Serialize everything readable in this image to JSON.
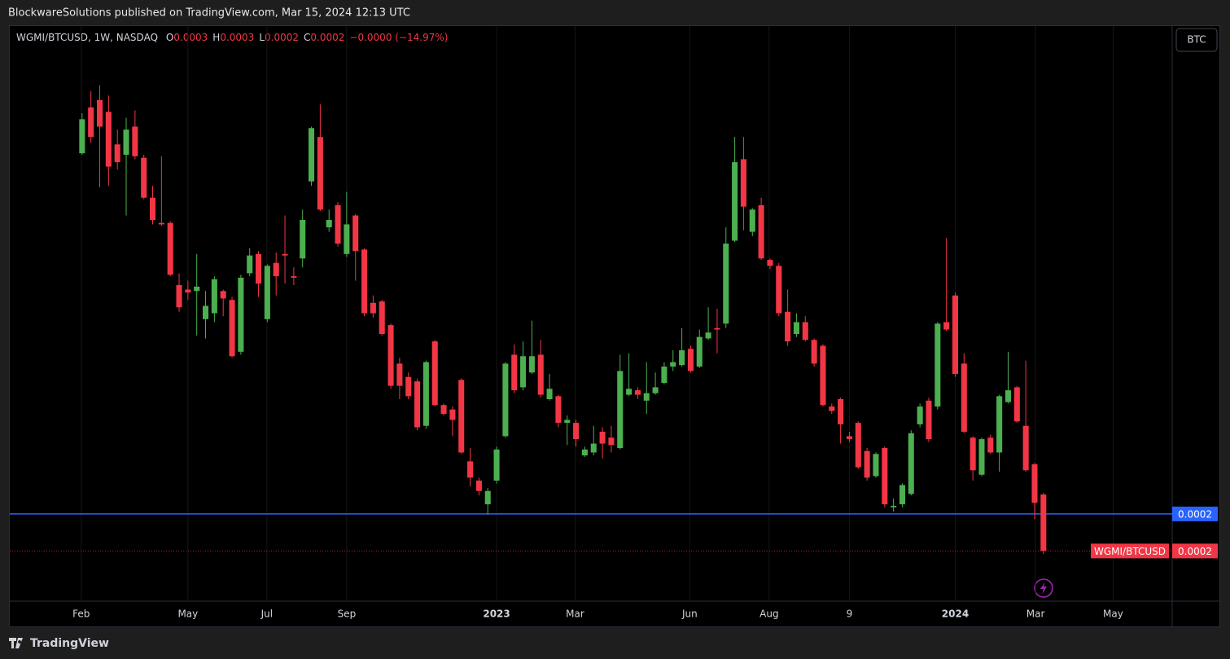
{
  "header": {
    "title": "BlockwareSolutions published on TradingView.com, Mar 15, 2024 12:13 UTC"
  },
  "chart_data": {
    "type": "candlestick",
    "symbol": "WGMI/BTCUSD, 1W, NASDAQ",
    "ohlc_legend": [
      {
        "label": "O",
        "value": "0.0003"
      },
      {
        "label": "H",
        "value": "0.0003"
      },
      {
        "label": "L",
        "value": "0.0002"
      },
      {
        "label": "C",
        "value": "0.0002"
      }
    ],
    "change": "−0.0000 (−14.97%)",
    "currency_button": "BTC",
    "series": [
      {
        "name": "WGMI/BTCUSD",
        "up_color": "#4caf50",
        "down_color": "#f23645",
        "last_label": "0.0002",
        "open": [
          0.000485,
          0.000516,
          0.000521,
          0.000513,
          0.000491,
          0.000484,
          0.000503,
          0.000482,
          0.000455,
          0.000438,
          0.000438,
          0.000396,
          0.000393,
          0.000392,
          0.000373,
          0.000377,
          0.000392,
          0.000386,
          0.000351,
          0.000404,
          0.000417,
          0.000373,
          0.000411,
          0.000417,
          0.000402,
          0.000414,
          0.000466,
          0.000496,
          0.000435,
          0.00045,
          0.000417,
          0.000443,
          0.00042,
          0.000384,
          0.000385,
          0.000369,
          0.000343,
          0.000334,
          0.000331,
          0.000301,
          0.000358,
          0.000315,
          0.000312,
          0.000332,
          0.000277,
          0.000264,
          0.000248,
          0.000264,
          0.000294,
          0.000349,
          0.000327,
          0.000337,
          0.000349,
          0.000319,
          0.000321,
          0.000303,
          0.000303,
          0.000281,
          0.000283,
          0.000297,
          0.000293,
          0.000286,
          0.000322,
          0.000325,
          0.000318,
          0.000323,
          0.00033,
          0.000341,
          0.000342,
          0.000353,
          0.000341,
          0.00036,
          0.000367,
          0.00037,
          0.000426,
          0.000481,
          0.000432,
          0.00045,
          0.000413,
          0.000409,
          0.000378,
          0.000363,
          0.000371,
          0.000359,
          0.000355,
          0.000314,
          0.000319,
          0.000294,
          0.000303,
          0.000284,
          0.000267,
          0.000286,
          0.000246,
          0.000248,
          0.000255,
          0.000302,
          0.000318,
          0.000314,
          0.000371,
          0.000389,
          0.000343,
          0.000293,
          0.000268,
          0.000293,
          0.000283,
          0.000317,
          0.000327,
          0.000301,
          0.000275,
          0.0002546
        ],
        "high": [
          0.000512,
          0.000527,
          0.000531,
          0.000524,
          0.000501,
          0.000509,
          0.000514,
          0.000484,
          0.000463,
          0.000483,
          0.000439,
          0.000404,
          0.000399,
          0.000417,
          0.000392,
          0.000402,
          0.000393,
          0.000388,
          0.000403,
          0.000421,
          0.000419,
          0.00041,
          0.000418,
          0.000443,
          0.000408,
          0.000447,
          0.000503,
          0.000518,
          0.000447,
          0.000452,
          0.000459,
          0.000444,
          0.000421,
          0.000389,
          0.000386,
          0.00037,
          0.000347,
          0.000337,
          0.000333,
          0.000345,
          0.000359,
          0.000316,
          0.000314,
          0.000333,
          0.000286,
          0.000266,
          0.000259,
          0.000287,
          0.000344,
          0.000356,
          0.000358,
          0.000372,
          0.000359,
          0.000336,
          0.000322,
          0.000308,
          0.000305,
          0.000287,
          0.000301,
          0.0003,
          0.000301,
          0.000349,
          0.00035,
          0.000327,
          0.000344,
          0.000337,
          0.000344,
          0.000352,
          0.000367,
          0.000355,
          0.000366,
          0.000381,
          0.00038,
          0.000435,
          0.000496,
          0.000496,
          0.000448,
          0.000455,
          0.000414,
          0.000411,
          0.000393,
          0.000377,
          0.000375,
          0.00036,
          0.000356,
          0.000316,
          0.00032,
          0.000297,
          0.000304,
          0.000286,
          0.000283,
          0.000287,
          0.000252,
          0.000262,
          0.000298,
          0.000316,
          0.00032,
          0.000371,
          0.000428,
          0.000391,
          0.00035,
          0.000294,
          0.000293,
          0.000295,
          0.000322,
          0.000351,
          0.000328,
          0.000345,
          0.000276,
          0.0002558
        ],
        "low": [
          0.000484,
          0.000492,
          0.000462,
          0.000463,
          0.000474,
          0.000443,
          0.000481,
          0.000454,
          0.000437,
          0.000436,
          0.000402,
          0.000378,
          0.000386,
          0.000362,
          0.00036,
          0.000371,
          0.000375,
          0.000347,
          0.000349,
          0.000402,
          0.000388,
          0.000371,
          0.000389,
          0.000397,
          0.000396,
          0.000408,
          0.000463,
          0.000446,
          0.000432,
          0.000422,
          0.000415,
          0.000399,
          0.000375,
          0.000374,
          0.000362,
          0.000326,
          0.000319,
          0.000319,
          0.000298,
          0.000299,
          0.000314,
          0.000308,
          0.000294,
          0.000282,
          0.00026,
          0.000254,
          0.000241,
          0.000262,
          0.000293,
          0.000323,
          0.000325,
          0.000336,
          0.00032,
          0.000318,
          0.0003,
          0.000288,
          0.000287,
          0.00028,
          0.000281,
          0.000279,
          0.000283,
          0.000285,
          0.000321,
          0.000319,
          0.000309,
          0.000322,
          0.000329,
          0.000338,
          0.000341,
          0.000337,
          0.00034,
          0.000359,
          0.00035,
          0.000367,
          0.000425,
          0.000433,
          0.000429,
          0.000413,
          0.000407,
          0.000375,
          0.000355,
          0.000361,
          0.000358,
          0.000341,
          0.000314,
          0.000309,
          0.000289,
          0.00029,
          0.000272,
          0.000264,
          0.000266,
          0.000246,
          0.000243,
          0.000246,
          0.000254,
          0.0003,
          0.00029,
          0.000312,
          0.000365,
          0.000334,
          0.000296,
          0.000264,
          0.000267,
          0.000282,
          0.00027,
          0.000316,
          0.000303,
          0.00027,
          0.000238,
          0.0002145
        ],
        "close": [
          0.000508,
          0.000496,
          0.000503,
          0.000476,
          0.000479,
          0.000501,
          0.000483,
          0.000455,
          0.00044,
          0.000437,
          0.000403,
          0.000381,
          0.000391,
          0.000395,
          0.000382,
          0.0004,
          0.000387,
          0.000348,
          0.000401,
          0.000416,
          0.000397,
          0.000409,
          0.000402,
          0.000416,
          0.000401,
          0.00044,
          0.000502,
          0.000447,
          0.00044,
          0.000424,
          0.000437,
          0.000419,
          0.000377,
          0.000377,
          0.000363,
          0.000328,
          0.000328,
          0.000321,
          0.0003,
          0.000344,
          0.000315,
          0.000309,
          0.000305,
          0.000283,
          0.000266,
          0.000257,
          0.000257,
          0.000285,
          0.000343,
          0.000325,
          0.000348,
          0.000348,
          0.000322,
          0.000326,
          0.000303,
          0.000305,
          0.000292,
          0.000285,
          0.000289,
          0.000289,
          0.000288,
          0.000338,
          0.000326,
          0.000322,
          0.000323,
          0.000327,
          0.000341,
          0.000344,
          0.000352,
          0.000338,
          0.000361,
          0.000364,
          0.000366,
          0.000424,
          0.000479,
          0.000449,
          0.000447,
          0.000414,
          0.000409,
          0.000377,
          0.000358,
          0.000371,
          0.000359,
          0.000343,
          0.000315,
          0.000311,
          0.000302,
          0.000292,
          0.000273,
          0.000266,
          0.000282,
          0.000248,
          0.000247,
          0.000261,
          0.000296,
          0.000314,
          0.000292,
          0.00037,
          0.000366,
          0.000336,
          0.000297,
          0.000271,
          0.000292,
          0.000283,
          0.000321,
          0.000325,
          0.000304,
          0.000271,
          0.000249,
          0.00021648
        ]
      }
    ],
    "xlim": [
      -8.2,
      123.6
    ],
    "xticks": [
      {
        "value": -0.1,
        "label": "Feb"
      },
      {
        "value": 12.0,
        "label": "May"
      },
      {
        "value": 20.95,
        "label": "Jul"
      },
      {
        "value": 30.0,
        "label": "Sep"
      },
      {
        "value": 47.0,
        "label": "2023"
      },
      {
        "value": 55.9,
        "label": "Mar"
      },
      {
        "value": 68.9,
        "label": "Jun"
      },
      {
        "value": 77.9,
        "label": "Aug"
      },
      {
        "value": 87.0,
        "label": "9"
      },
      {
        "value": 99.0,
        "label": "2024"
      },
      {
        "value": 108.1,
        "label": "Mar"
      },
      {
        "value": 116.9,
        "label": "May"
      }
    ],
    "ylim": [
      0.0001826,
      0.0005709
    ],
    "grid": true,
    "horizontal_line": {
      "value": 0.0002415,
      "label": "0.0002",
      "color": "#2962ff"
    }
  },
  "footer": {
    "brand": "TradingView"
  }
}
